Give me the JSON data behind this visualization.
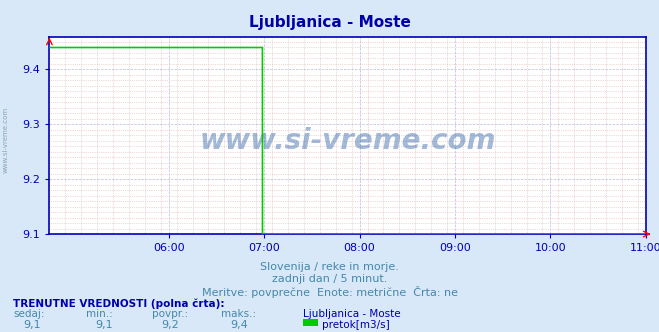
{
  "title": "Ljubljanica - Moste",
  "bg_color": "#d8e8f8",
  "plot_bg_color": "#ffffff",
  "line_color": "#00cc00",
  "axis_color": "#0000bb",
  "grid_color_major": "#aaaacc",
  "grid_color_minor": "#ddaaaa",
  "title_color": "#0000aa",
  "text_color": "#4488aa",
  "label_color": "#0000aa",
  "xlim": [
    4.75,
    11.0
  ],
  "ylim": [
    9.1,
    9.45
  ],
  "yticks": [
    9.1,
    9.2,
    9.3,
    9.4
  ],
  "xtick_hours": [
    6,
    7,
    8,
    9,
    10,
    11
  ],
  "xtick_labels": [
    "06:00",
    "07:00",
    "08:00",
    "09:00",
    "10:00",
    "11:00"
  ],
  "drop_x": 6.983,
  "high_val": 9.44,
  "low_val": 9.1,
  "drop_val": 9.4,
  "watermark": "www.si-vreme.com",
  "subtitle1": "Slovenija / reke in morje.",
  "subtitle2": "zadnji dan / 5 minut.",
  "subtitle3": "Meritve: povprečne  Enote: metrične  Črta: ne",
  "footer_bold": "TRENUTNE VREDNOSTI (polna črta):",
  "footer_cols": [
    "sedaj:",
    "min.:",
    "povpr.:",
    "maks.:"
  ],
  "footer_vals": [
    "9,1",
    "9,1",
    "9,2",
    "9,4"
  ],
  "footer_station": "Ljubljanica - Moste",
  "footer_legend": "pretok[m3/s]",
  "legend_color": "#00cc00",
  "ylabel_text": "www.si-vreme.com",
  "watermark_color": "#3366aa"
}
